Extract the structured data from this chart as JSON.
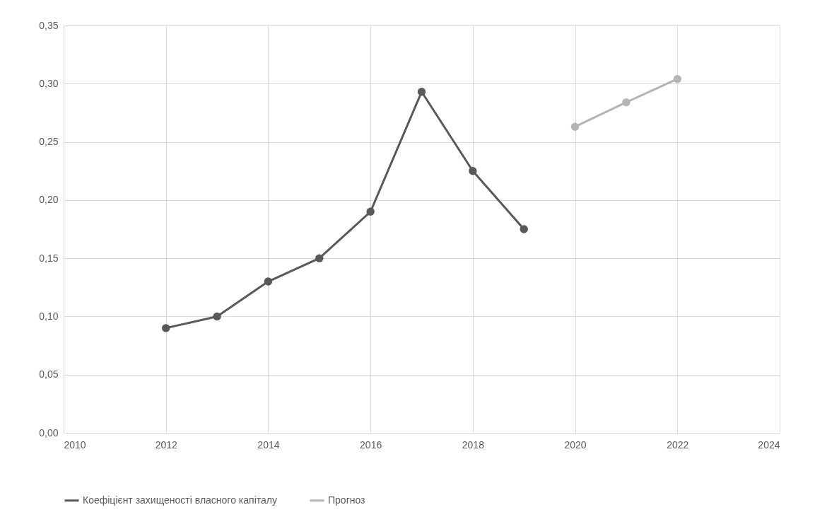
{
  "chart_data": {
    "type": "line",
    "x": [
      2012,
      2013,
      2014,
      2015,
      2016,
      2017,
      2018,
      2019,
      2020,
      2021,
      2022
    ],
    "series": [
      {
        "name": "Коефіцієнт захищеності власного капіталу",
        "color": "#595959",
        "values": [
          0.09,
          0.1,
          0.13,
          0.15,
          0.19,
          0.293,
          0.225,
          0.175,
          null,
          null,
          null
        ]
      },
      {
        "name": "Прогноз",
        "color": "#b4b4b4",
        "values": [
          null,
          null,
          null,
          null,
          null,
          null,
          null,
          null,
          0.263,
          0.284,
          0.304
        ]
      }
    ],
    "xlim": [
      2010,
      2024
    ],
    "xticks": [
      2010,
      2012,
      2014,
      2016,
      2018,
      2020,
      2022,
      2024
    ],
    "ylim": [
      0,
      0.35
    ],
    "yticks": [
      {
        "value": 0,
        "label": "0,00"
      },
      {
        "value": 0.05,
        "label": "0,05"
      },
      {
        "value": 0.1,
        "label": "0,10"
      },
      {
        "value": 0.15,
        "label": "0,15"
      },
      {
        "value": 0.2,
        "label": "0,20"
      },
      {
        "value": 0.25,
        "label": "0,25"
      },
      {
        "value": 0.3,
        "label": "0,30"
      },
      {
        "value": 0.35,
        "label": "0,35"
      }
    ],
    "grid": true,
    "legend": "bottom",
    "marker": "circle",
    "line_style": "solid"
  }
}
